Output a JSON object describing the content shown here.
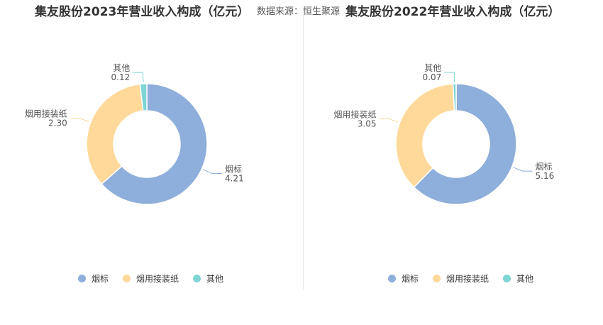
{
  "source": {
    "label": "数据来源：",
    "value": "恒生聚源"
  },
  "colors": {
    "烟标": "#8eaedb",
    "烟用接装纸": "#ffd99a",
    "其他": "#7fd4d4"
  },
  "chart_data": [
    {
      "type": "pie",
      "title": "集友股份2023年营业收入构成（亿元）",
      "categories": [
        "烟标",
        "烟用接装纸",
        "其他"
      ],
      "values": [
        4.21,
        2.3,
        0.12
      ],
      "value_labels": [
        "4.21",
        "2.30",
        "0.12"
      ],
      "legend": "bottom"
    },
    {
      "type": "pie",
      "title": "集友股份2022年营业收入构成（亿元）",
      "categories": [
        "烟标",
        "烟用接装纸",
        "其他"
      ],
      "values": [
        5.16,
        3.05,
        0.07
      ],
      "value_labels": [
        "5.16",
        "3.05",
        "0.07"
      ],
      "legend": "bottom"
    }
  ]
}
